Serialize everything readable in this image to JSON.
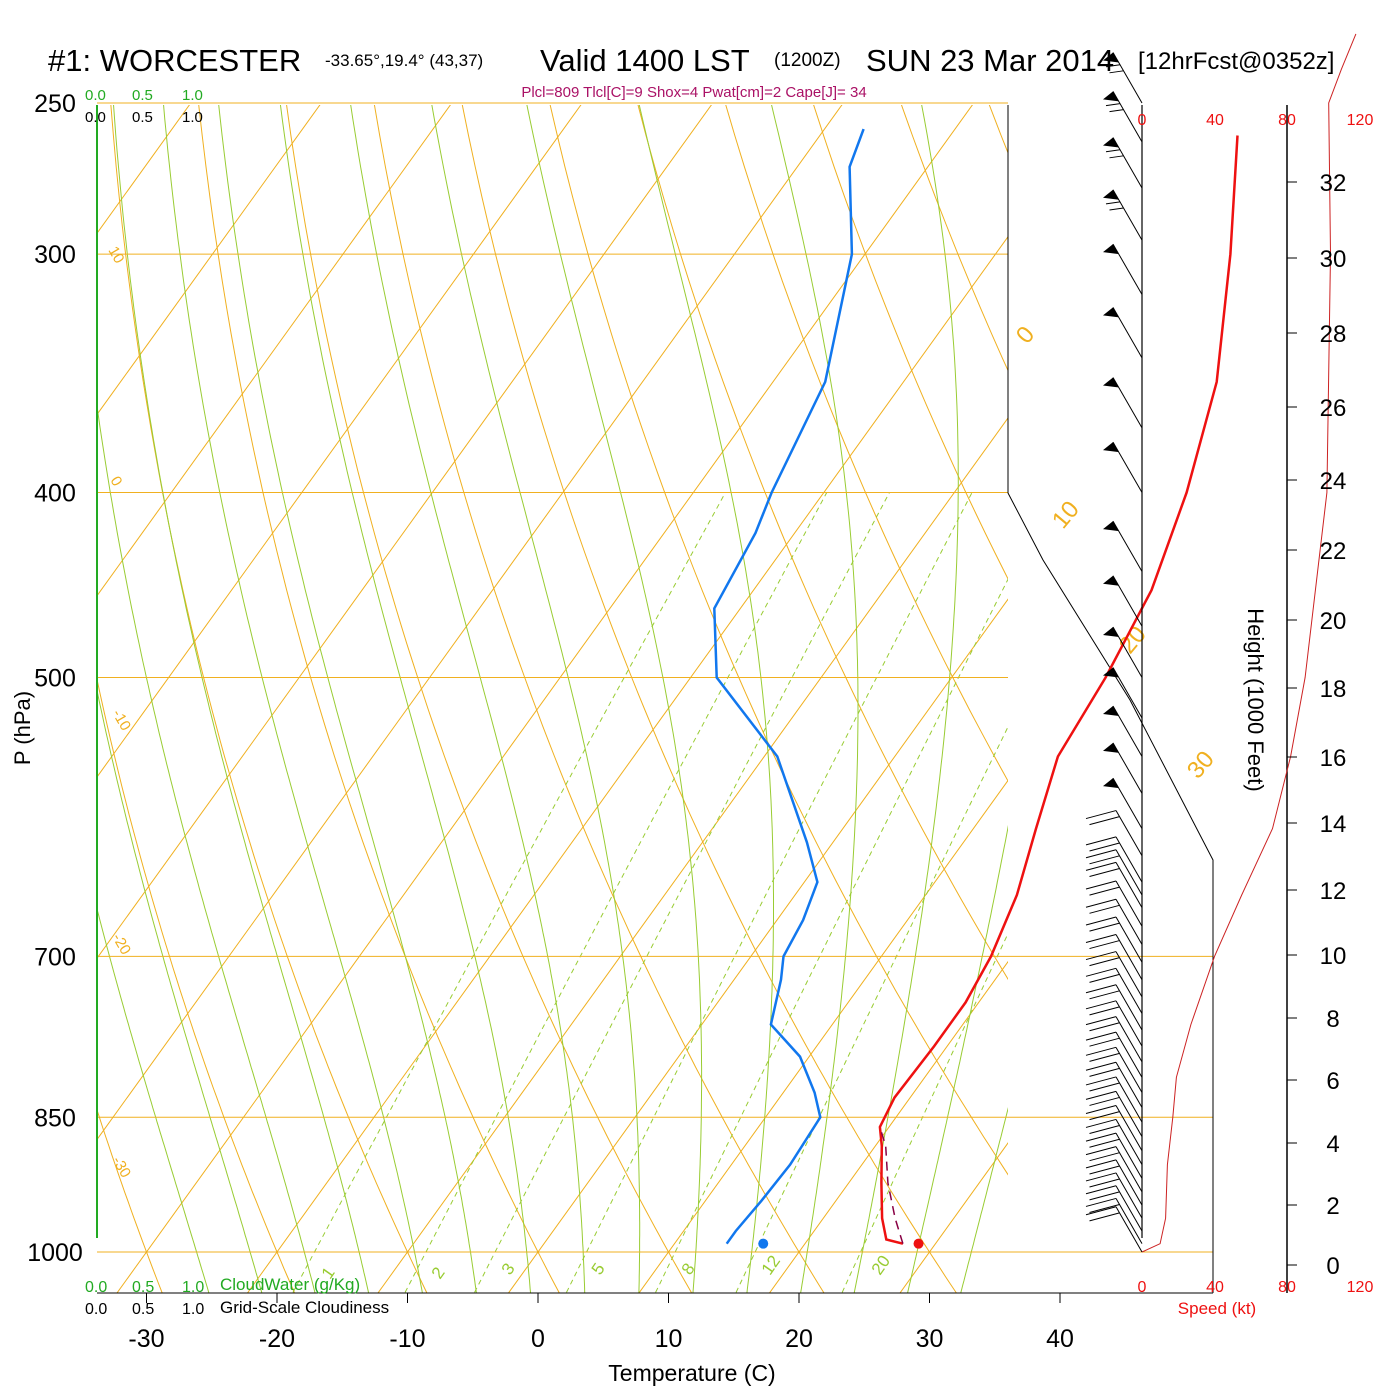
{
  "header": {
    "station": "#1: WORCESTER",
    "coords": "-33.65°,19.4° (43,37)",
    "valid": "Valid 1400 LST",
    "zulu": "(1200Z)",
    "date": "SUN 23 Mar 2014",
    "forecast": "[12hrFcst@0352z]",
    "params": "Plcl=809 Tlcl[C]=9 Shox=4 Pwat[cm]=2 Cape[J]= 34"
  },
  "cloud_scale": {
    "ticks": [
      "0.0",
      "0.5",
      "1.0"
    ],
    "cloudwater_label": "CloudWater (g/Kg)",
    "cloudiness_label": "Grid-Scale Cloudiness",
    "green_color": "#22aa22"
  },
  "axes": {
    "xlabel": "Temperature (C)",
    "ylabel": "P (hPa)",
    "height_label": "Height (1000 Feet)",
    "speed_label": "Speed (kt)"
  },
  "chart_data": {
    "type": "line",
    "title": "#1: WORCESTER Valid 1400 LST SUN 23 Mar 2014",
    "xlabel": "Temperature (C)",
    "ylabel": "P (hPa)",
    "xlim": [
      -33,
      46
    ],
    "pressure_ticks": [
      250,
      300,
      400,
      500,
      700,
      850,
      1000
    ],
    "temp_ticks": [
      -30,
      -20,
      -10,
      0,
      10,
      20,
      30,
      40
    ],
    "isobars": [
      250,
      300,
      400,
      500,
      700,
      850,
      1000
    ],
    "isotherm_labels": [
      "10",
      "0",
      "-10",
      "-20",
      "-30",
      "0",
      "10",
      "20",
      "30"
    ],
    "mixing_ratio_labels": [
      "1",
      "2",
      "3",
      "5",
      "8",
      "12",
      "20"
    ],
    "series": [
      {
        "name": "Temperature",
        "color": "#ee1111",
        "points": [
          [
            27.5,
            990
          ],
          [
            26,
            985
          ],
          [
            24.5,
            960
          ],
          [
            22.5,
            920
          ],
          [
            20.5,
            880
          ],
          [
            19.3,
            860
          ],
          [
            18.8,
            830
          ],
          [
            19,
            780
          ],
          [
            19,
            740
          ],
          [
            18.4,
            700
          ],
          [
            17,
            650
          ],
          [
            14.8,
            600
          ],
          [
            12.5,
            550
          ],
          [
            11.8,
            500
          ],
          [
            10.5,
            450
          ],
          [
            7.8,
            400
          ],
          [
            4,
            350
          ],
          [
            -2,
            300
          ],
          [
            -8,
            260
          ]
        ]
      },
      {
        "name": "Dewpoint",
        "color": "#1177ee",
        "points": [
          [
            14,
            990
          ],
          [
            14,
            975
          ],
          [
            14.3,
            940
          ],
          [
            14.5,
            900
          ],
          [
            14.2,
            850
          ],
          [
            12.4,
            825
          ],
          [
            9.3,
            790
          ],
          [
            5.3,
            760
          ],
          [
            3.6,
            720
          ],
          [
            2.5,
            700
          ],
          [
            2,
            670
          ],
          [
            1,
            640
          ],
          [
            -2,
            610
          ],
          [
            -9,
            550
          ],
          [
            -18,
            500
          ],
          [
            -22,
            460
          ],
          [
            -23,
            420
          ],
          [
            -24,
            400
          ],
          [
            -26,
            350
          ],
          [
            -31,
            300
          ],
          [
            -36,
            270
          ],
          [
            -37,
            258
          ]
        ]
      },
      {
        "name": "Parcel",
        "color": "#880044",
        "points": [
          [
            27.5,
            990
          ],
          [
            25.5,
            960
          ],
          [
            23,
            920
          ],
          [
            20.8,
            880
          ],
          [
            19.3,
            860
          ]
        ]
      }
    ],
    "surface_temp": 28.7,
    "surface_dewpoint": 16.8,
    "height_axis": {
      "ticks": [
        "0",
        "2",
        "4",
        "6",
        "8",
        "10",
        "12",
        "14",
        "16",
        "18",
        "20",
        "22",
        "24",
        "26",
        "28",
        "30",
        "32"
      ]
    },
    "speed_axis": {
      "ticks": [
        "0",
        "40",
        "80",
        "120"
      ],
      "top_ticks": [
        "0",
        "40",
        "80",
        "120"
      ],
      "color": "#ee1111"
    },
    "wind_profile": {
      "name": "Wind speed",
      "color": "#cc2222",
      "points": [
        [
          0,
          1000
        ],
        [
          10,
          990
        ],
        [
          13,
          960
        ],
        [
          14,
          900
        ],
        [
          17,
          850
        ],
        [
          19,
          810
        ],
        [
          27,
          760
        ],
        [
          40,
          700
        ],
        [
          55,
          650
        ],
        [
          72,
          600
        ],
        [
          82,
          550
        ],
        [
          90,
          500
        ],
        [
          102,
          400
        ],
        [
          104,
          300
        ],
        [
          103,
          250
        ],
        [
          110,
          240
        ],
        [
          118,
          230
        ]
      ]
    },
    "wind_barbs": [
      {
        "p": 1000,
        "kt": 22
      },
      {
        "p": 990,
        "kt": 22
      },
      {
        "p": 975,
        "kt": 22
      },
      {
        "p": 960,
        "kt": 22
      },
      {
        "p": 945,
        "kt": 22
      },
      {
        "p": 930,
        "kt": 22
      },
      {
        "p": 915,
        "kt": 22
      },
      {
        "p": 900,
        "kt": 22
      },
      {
        "p": 885,
        "kt": 22
      },
      {
        "p": 870,
        "kt": 22
      },
      {
        "p": 855,
        "kt": 22
      },
      {
        "p": 840,
        "kt": 22
      },
      {
        "p": 825,
        "kt": 22
      },
      {
        "p": 810,
        "kt": 22
      },
      {
        "p": 795,
        "kt": 22
      },
      {
        "p": 780,
        "kt": 22
      },
      {
        "p": 765,
        "kt": 22
      },
      {
        "p": 750,
        "kt": 22
      },
      {
        "p": 735,
        "kt": 22
      },
      {
        "p": 720,
        "kt": 22
      },
      {
        "p": 705,
        "kt": 22
      },
      {
        "p": 690,
        "kt": 22
      },
      {
        "p": 675,
        "kt": 22
      },
      {
        "p": 660,
        "kt": 22
      },
      {
        "p": 650,
        "kt": 22
      },
      {
        "p": 640,
        "kt": 22
      },
      {
        "p": 620,
        "kt": 22
      },
      {
        "p": 600,
        "kt": 50
      },
      {
        "p": 575,
        "kt": 50
      },
      {
        "p": 550,
        "kt": 50
      },
      {
        "p": 525,
        "kt": 50
      },
      {
        "p": 500,
        "kt": 50
      },
      {
        "p": 470,
        "kt": 50
      },
      {
        "p": 440,
        "kt": 50
      },
      {
        "p": 400,
        "kt": 50
      },
      {
        "p": 370,
        "kt": 50
      },
      {
        "p": 340,
        "kt": 50
      },
      {
        "p": 315,
        "kt": 50
      },
      {
        "p": 295,
        "kt": 75
      },
      {
        "p": 277,
        "kt": 75
      },
      {
        "p": 262,
        "kt": 75
      },
      {
        "p": 250,
        "kt": 75
      }
    ]
  }
}
